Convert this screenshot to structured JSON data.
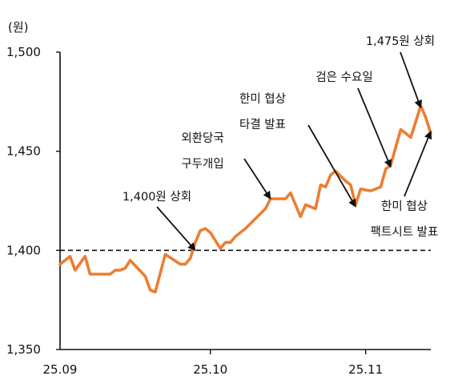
{
  "chart_data": {
    "type": "line",
    "unit_label": "(원)",
    "ylim": [
      1350,
      1500
    ],
    "y_ticks": [
      "1,350",
      "1,400",
      "1,450",
      "1,500"
    ],
    "y_tick_values": [
      1350,
      1400,
      1450,
      1500
    ],
    "x_ticks": [
      "25.09",
      "25.10",
      "25.11"
    ],
    "x_tick_values": [
      0,
      30,
      61
    ],
    "x_range": [
      0,
      74
    ],
    "reference_line": {
      "value": 1400,
      "style": "dashed"
    },
    "series": [
      {
        "color": "#ed7d31",
        "points": [
          [
            0,
            1393
          ],
          [
            2,
            1397
          ],
          [
            3,
            1390
          ],
          [
            5,
            1397
          ],
          [
            6,
            1388
          ],
          [
            9,
            1388
          ],
          [
            10,
            1388
          ],
          [
            11,
            1390
          ],
          [
            12,
            1390
          ],
          [
            13,
            1391
          ],
          [
            14,
            1395
          ],
          [
            17,
            1387
          ],
          [
            18,
            1380
          ],
          [
            19,
            1379
          ],
          [
            21,
            1398
          ],
          [
            24,
            1393
          ],
          [
            25,
            1393
          ],
          [
            26,
            1396
          ],
          [
            27,
            1404
          ],
          [
            28,
            1410
          ],
          [
            29,
            1411
          ],
          [
            30,
            1409
          ],
          [
            32,
            1401
          ],
          [
            33,
            1404
          ],
          [
            34,
            1404
          ],
          [
            35,
            1407
          ],
          [
            37,
            1411
          ],
          [
            41,
            1421
          ],
          [
            42,
            1426
          ],
          [
            45,
            1426
          ],
          [
            46,
            1429
          ],
          [
            47,
            1423
          ],
          [
            48,
            1417
          ],
          [
            49,
            1423
          ],
          [
            51,
            1421
          ],
          [
            52,
            1433
          ],
          [
            53,
            1432
          ],
          [
            54,
            1438
          ],
          [
            55,
            1440
          ],
          [
            57,
            1435
          ],
          [
            58,
            1433
          ],
          [
            59,
            1423
          ],
          [
            60,
            1431
          ],
          [
            62,
            1430
          ],
          [
            63,
            1431
          ],
          [
            64,
            1432
          ],
          [
            65,
            1441
          ],
          [
            66,
            1443
          ],
          [
            67,
            1452
          ],
          [
            68,
            1461
          ],
          [
            70,
            1457
          ],
          [
            72,
            1473
          ],
          [
            73,
            1467
          ],
          [
            74,
            1459
          ]
        ]
      }
    ],
    "annotations": [
      {
        "text": "1,400원 상회",
        "x": 27,
        "y": 1400
      },
      {
        "lines": [
          "외환당국",
          "구두개입"
        ],
        "x": 42,
        "y": 1426
      },
      {
        "lines": [
          "한미 협상",
          "타결 발표"
        ],
        "x": 59,
        "y": 1422
      },
      {
        "text": "검은 수요일",
        "x": 66,
        "y": 1442
      },
      {
        "text": "1,475원 상회",
        "x": 72,
        "y": 1472
      },
      {
        "lines": [
          "한미 협상",
          "팩트시트 발표"
        ],
        "x": 74,
        "y": 1460
      }
    ]
  }
}
